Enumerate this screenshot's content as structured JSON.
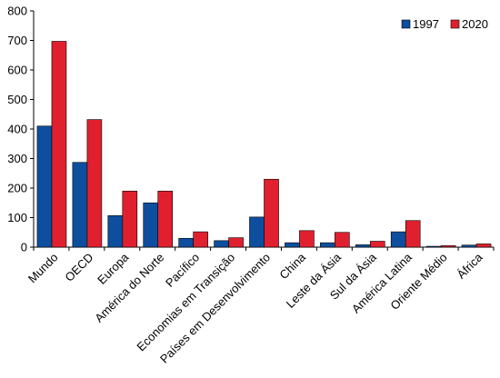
{
  "chart_data": {
    "type": "bar",
    "title": "",
    "xlabel": "",
    "ylabel": "",
    "ylim": [
      0,
      800
    ],
    "yticks": [
      0,
      100,
      200,
      300,
      400,
      500,
      600,
      700,
      800
    ],
    "grid": false,
    "legend_position": "top-right",
    "categories": [
      "Mundo",
      "OECD",
      "Europa",
      "América do Norte",
      "Pacífico",
      "Economias em Transição",
      "Países em Desenvolvimento",
      "China",
      "Leste da Ásia",
      "Sul da Ásia",
      "América Latina",
      "Oriente Médio",
      "África"
    ],
    "series": [
      {
        "name": "1997",
        "color": "#0D4F9E",
        "values": [
          410,
          287,
          107,
          150,
          30,
          22,
          102,
          15,
          15,
          8,
          52,
          3,
          7
        ]
      },
      {
        "name": "2020",
        "color": "#E0202E",
        "values": [
          697,
          432,
          190,
          190,
          52,
          32,
          230,
          56,
          50,
          20,
          90,
          5,
          11
        ]
      }
    ]
  }
}
